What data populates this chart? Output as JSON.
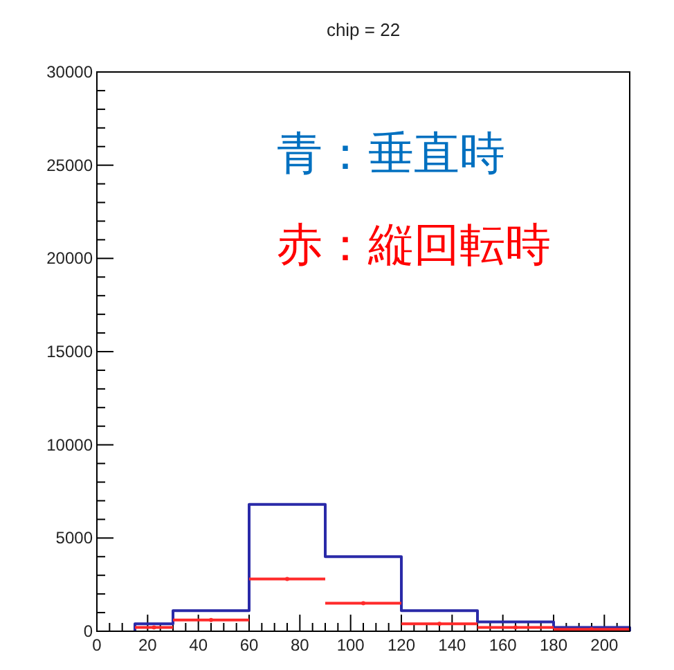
{
  "chart_data": {
    "type": "histogram",
    "title": "chip = 22",
    "bins": [
      15,
      30,
      60,
      90,
      120,
      150,
      180,
      210
    ],
    "series": [
      {
        "color": "#2a2aa8",
        "values": [
          400,
          1100,
          6800,
          4000,
          1100,
          500,
          200
        ]
      },
      {
        "type": "scatter",
        "color": "#ff2a2a",
        "x": [
          22.5,
          45,
          75,
          105,
          135,
          165,
          195
        ],
        "values": [
          200,
          600,
          2800,
          1500,
          400,
          200,
          100
        ],
        "xerrors": [
          7.5,
          15,
          15,
          15,
          15,
          15,
          15
        ]
      }
    ],
    "annotations": [
      "青：垂直時",
      "赤：縦回転時"
    ],
    "xlim": [
      0,
      210
    ],
    "xticks": [
      0,
      20,
      40,
      60,
      80,
      100,
      120,
      140,
      160,
      180,
      200
    ],
    "ylim": [
      0,
      30000
    ],
    "yticks": [
      0,
      5000,
      10000,
      15000,
      20000,
      25000,
      30000
    ],
    "grid": false,
    "marker": "circle"
  }
}
